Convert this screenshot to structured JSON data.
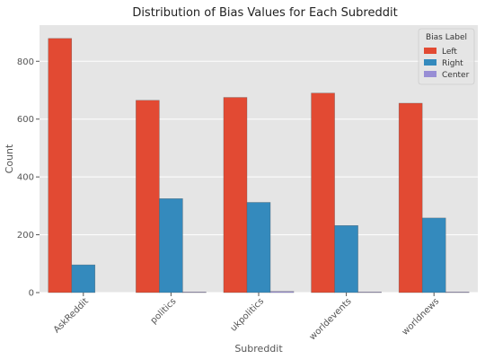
{
  "chart_data": {
    "type": "bar",
    "title": "Distribution of Bias Values for Each Subreddit",
    "xlabel": "Subreddit",
    "ylabel": "Count",
    "categories": [
      "AskReddit",
      "politics",
      "ukpolitics",
      "worldevents",
      "worldnews"
    ],
    "series": [
      {
        "name": "Left",
        "color": "#E24A33",
        "values": [
          879,
          665,
          675,
          690,
          655
        ]
      },
      {
        "name": "Right",
        "color": "#348ABD",
        "values": [
          96,
          325,
          312,
          232,
          258
        ]
      },
      {
        "name": "Center",
        "color": "#988ED5",
        "values": [
          0,
          2,
          4,
          2,
          2
        ]
      }
    ],
    "ylim": [
      0,
      925
    ],
    "yticks": [
      0,
      200,
      400,
      600,
      800
    ],
    "grid": true,
    "legend": {
      "title": "Bias Label",
      "placement": "top-right"
    },
    "background": "#E5E5E5"
  }
}
